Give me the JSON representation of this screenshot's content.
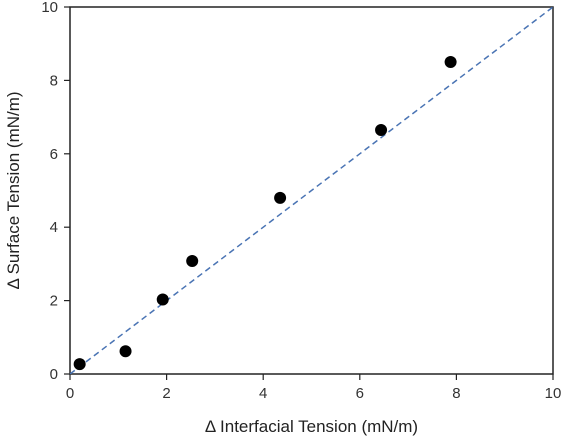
{
  "chart_data": {
    "type": "scatter",
    "title": "",
    "xlabel": "Δ Interfacial Tension (mN/m)",
    "ylabel": "Δ Surface Tension (mN/m)",
    "xlim": [
      0,
      10
    ],
    "ylim": [
      0,
      10
    ],
    "xticks": [
      "0",
      "2",
      "4",
      "6",
      "8",
      "10"
    ],
    "yticks": [
      "0",
      "2",
      "4",
      "6",
      "8",
      "10"
    ],
    "grid": false,
    "series": [
      {
        "x": [
          0.2,
          1.15,
          1.92,
          2.53,
          4.35,
          6.44,
          7.88
        ],
        "y": [
          0.27,
          0.62,
          2.03,
          3.08,
          4.8,
          6.65,
          8.5
        ],
        "color": "#000000"
      }
    ],
    "reference_line": {
      "x": [
        0,
        10
      ],
      "y": [
        0,
        10
      ],
      "style": "dashed",
      "color": "#4a74b4"
    }
  }
}
